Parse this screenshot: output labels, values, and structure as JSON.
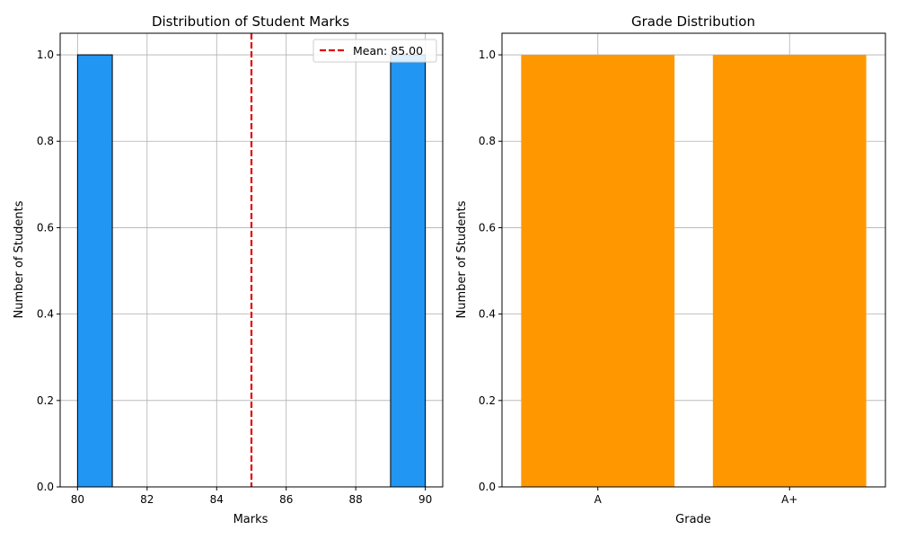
{
  "chart_data": [
    {
      "type": "bar",
      "subtype": "histogram",
      "title": "Distribution of Student Marks",
      "xlabel": "Marks",
      "ylabel": "Number of Students",
      "xlim": [
        79.5,
        90.5
      ],
      "ylim": [
        0,
        1.05
      ],
      "xticks": [
        80,
        82,
        84,
        86,
        88,
        90
      ],
      "yticks": [
        0.0,
        0.2,
        0.4,
        0.6,
        0.8,
        1.0
      ],
      "bins": [
        {
          "start": 80,
          "end": 81,
          "count": 1
        },
        {
          "start": 81,
          "end": 82,
          "count": 0
        },
        {
          "start": 82,
          "end": 83,
          "count": 0
        },
        {
          "start": 83,
          "end": 84,
          "count": 0
        },
        {
          "start": 84,
          "end": 85,
          "count": 0
        },
        {
          "start": 85,
          "end": 86,
          "count": 0
        },
        {
          "start": 86,
          "end": 87,
          "count": 0
        },
        {
          "start": 87,
          "end": 88,
          "count": 0
        },
        {
          "start": 88,
          "end": 89,
          "count": 0
        },
        {
          "start": 89,
          "end": 90,
          "count": 1
        }
      ],
      "bar_color": "#2196f3",
      "mean_line": {
        "value": 85.0,
        "label": "Mean: 85.00",
        "color": "#e00000"
      },
      "legend_position": "top-right",
      "grid": true
    },
    {
      "type": "bar",
      "title": "Grade Distribution",
      "xlabel": "Grade",
      "ylabel": "Number of Students",
      "categories": [
        "A",
        "A+"
      ],
      "values": [
        1,
        1
      ],
      "ylim": [
        0,
        1.05
      ],
      "yticks": [
        0.0,
        0.2,
        0.4,
        0.6,
        0.8,
        1.0
      ],
      "bar_color": "#ff9800",
      "grid": true
    }
  ]
}
